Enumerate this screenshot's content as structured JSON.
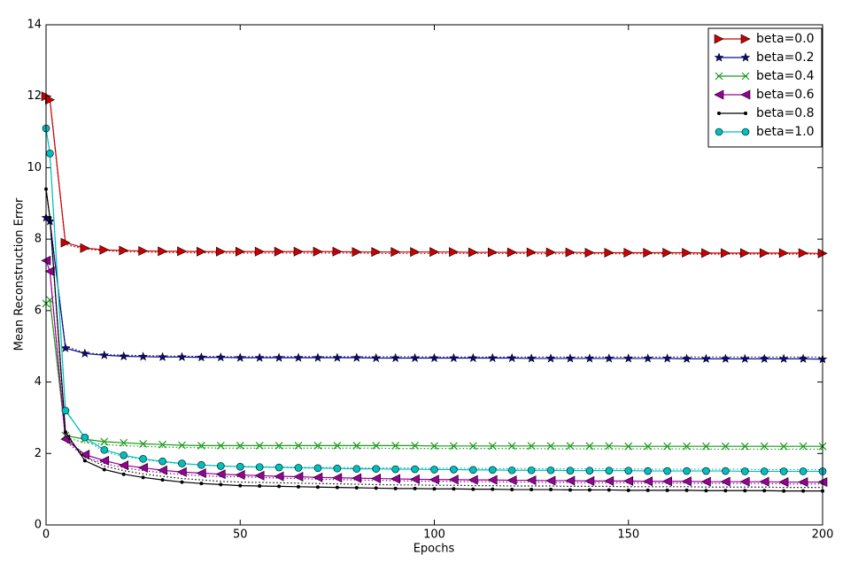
{
  "chart_data": {
    "type": "line",
    "xlabel": "Epochs",
    "ylabel": "Mean Reconstruction Error",
    "x": [
      0,
      1,
      5,
      10,
      15,
      20,
      25,
      30,
      35,
      40,
      45,
      50,
      55,
      60,
      65,
      70,
      75,
      80,
      85,
      90,
      95,
      100,
      105,
      110,
      115,
      120,
      125,
      130,
      135,
      140,
      145,
      150,
      155,
      160,
      165,
      170,
      175,
      180,
      185,
      190,
      195,
      200
    ],
    "xlim": [
      0,
      200
    ],
    "xticks": [
      0,
      50,
      100,
      150,
      200
    ],
    "ylim": [
      0,
      14
    ],
    "yticks": [
      0,
      2,
      4,
      6,
      8,
      10,
      12,
      14
    ],
    "legend": "upper right",
    "series": [
      {
        "name": "beta=0.0",
        "color": "#cc0000",
        "marker": "triangle-right",
        "values": [
          12.0,
          11.9,
          7.9,
          7.75,
          7.7,
          7.68,
          7.67,
          7.66,
          7.66,
          7.65,
          7.65,
          7.65,
          7.65,
          7.65,
          7.65,
          7.65,
          7.65,
          7.64,
          7.64,
          7.64,
          7.64,
          7.64,
          7.64,
          7.63,
          7.63,
          7.63,
          7.63,
          7.63,
          7.63,
          7.62,
          7.62,
          7.62,
          7.62,
          7.62,
          7.62,
          7.61,
          7.61,
          7.61,
          7.61,
          7.61,
          7.61,
          7.6
        ],
        "dotted_values": [
          12.0,
          11.9,
          7.85,
          7.72,
          7.68,
          7.65,
          7.64,
          7.63,
          7.62,
          7.62,
          7.61,
          7.61,
          7.61,
          7.61,
          7.61,
          7.61,
          7.61,
          7.61,
          7.6,
          7.6,
          7.6,
          7.6,
          7.6,
          7.6,
          7.6,
          7.6,
          7.59,
          7.59,
          7.59,
          7.59,
          7.59,
          7.59,
          7.59,
          7.59,
          7.58,
          7.58,
          7.58,
          7.58,
          7.58,
          7.58,
          7.58,
          7.57
        ]
      },
      {
        "name": "beta=0.2",
        "color": "#0a0a8c",
        "marker": "star",
        "values": [
          8.6,
          8.5,
          4.95,
          4.8,
          4.75,
          4.72,
          4.71,
          4.7,
          4.7,
          4.69,
          4.69,
          4.68,
          4.68,
          4.68,
          4.68,
          4.68,
          4.68,
          4.68,
          4.67,
          4.67,
          4.67,
          4.67,
          4.67,
          4.67,
          4.67,
          4.67,
          4.66,
          4.66,
          4.66,
          4.66,
          4.66,
          4.66,
          4.66,
          4.66,
          4.65,
          4.65,
          4.65,
          4.65,
          4.65,
          4.65,
          4.65,
          4.64
        ],
        "dotted_values": [
          8.6,
          8.5,
          5.0,
          4.82,
          4.77,
          4.75,
          4.74,
          4.73,
          4.72,
          4.72,
          4.71,
          4.71,
          4.71,
          4.71,
          4.71,
          4.71,
          4.71,
          4.71,
          4.71,
          4.71,
          4.71,
          4.7,
          4.7,
          4.7,
          4.7,
          4.7,
          4.7,
          4.7,
          4.7,
          4.7,
          4.7,
          4.7,
          4.7,
          4.7,
          4.7,
          4.7,
          4.7,
          4.7,
          4.7,
          4.7,
          4.7,
          4.7
        ]
      },
      {
        "name": "beta=0.4",
        "color": "#1f9a1f",
        "marker": "x",
        "values": [
          6.2,
          6.3,
          2.5,
          2.4,
          2.33,
          2.3,
          2.27,
          2.25,
          2.23,
          2.22,
          2.22,
          2.22,
          2.22,
          2.22,
          2.22,
          2.22,
          2.22,
          2.22,
          2.22,
          2.22,
          2.22,
          2.21,
          2.21,
          2.21,
          2.21,
          2.21,
          2.21,
          2.21,
          2.21,
          2.21,
          2.21,
          2.2,
          2.2,
          2.2,
          2.2,
          2.2,
          2.2,
          2.2,
          2.2,
          2.2,
          2.2,
          2.2
        ],
        "dotted_values": [
          6.2,
          6.3,
          2.45,
          2.3,
          2.25,
          2.22,
          2.2,
          2.18,
          2.17,
          2.16,
          2.15,
          2.15,
          2.15,
          2.15,
          2.15,
          2.15,
          2.15,
          2.15,
          2.15,
          2.14,
          2.14,
          2.14,
          2.14,
          2.14,
          2.14,
          2.14,
          2.14,
          2.13,
          2.13,
          2.13,
          2.13,
          2.13,
          2.13,
          2.13,
          2.13,
          2.12,
          2.12,
          2.12,
          2.12,
          2.12,
          2.12,
          2.12
        ]
      },
      {
        "name": "beta=0.6",
        "color": "#990099",
        "marker": "triangle-left",
        "values": [
          7.4,
          7.1,
          2.4,
          1.97,
          1.8,
          1.67,
          1.6,
          1.53,
          1.48,
          1.45,
          1.42,
          1.4,
          1.38,
          1.36,
          1.35,
          1.33,
          1.32,
          1.31,
          1.3,
          1.29,
          1.28,
          1.27,
          1.27,
          1.26,
          1.26,
          1.25,
          1.25,
          1.24,
          1.24,
          1.23,
          1.23,
          1.23,
          1.22,
          1.22,
          1.22,
          1.21,
          1.21,
          1.21,
          1.21,
          1.2,
          1.2,
          1.2
        ],
        "dotted_values": [
          7.4,
          7.1,
          2.35,
          1.9,
          1.72,
          1.6,
          1.52,
          1.46,
          1.41,
          1.38,
          1.35,
          1.35,
          1.33,
          1.31,
          1.3,
          1.28,
          1.27,
          1.26,
          1.25,
          1.24,
          1.23,
          1.22,
          1.22,
          1.21,
          1.21,
          1.2,
          1.2,
          1.19,
          1.19,
          1.18,
          1.18,
          1.18,
          1.17,
          1.17,
          1.17,
          1.16,
          1.16,
          1.16,
          1.16,
          1.15,
          1.15,
          1.15
        ]
      },
      {
        "name": "beta=0.8",
        "color": "#000000",
        "marker": "dot",
        "values": [
          9.4,
          8.6,
          2.6,
          1.8,
          1.55,
          1.42,
          1.33,
          1.26,
          1.2,
          1.16,
          1.13,
          1.1,
          1.09,
          1.08,
          1.07,
          1.06,
          1.05,
          1.04,
          1.03,
          1.02,
          1.02,
          1.01,
          1.01,
          1.0,
          1.0,
          0.99,
          0.99,
          0.99,
          0.98,
          0.98,
          0.98,
          0.97,
          0.97,
          0.97,
          0.97,
          0.96,
          0.96,
          0.96,
          0.96,
          0.95,
          0.95,
          0.95
        ],
        "dotted_values": [
          9.4,
          8.6,
          2.5,
          1.9,
          1.65,
          1.52,
          1.43,
          1.36,
          1.3,
          1.26,
          1.22,
          1.2,
          1.19,
          1.18,
          1.17,
          1.16,
          1.15,
          1.14,
          1.13,
          1.12,
          1.12,
          1.11,
          1.11,
          1.1,
          1.1,
          1.09,
          1.09,
          1.09,
          1.08,
          1.08,
          1.08,
          1.07,
          1.07,
          1.07,
          1.07,
          1.06,
          1.06,
          1.06,
          1.06,
          1.05,
          1.05,
          1.05
        ]
      },
      {
        "name": "beta=1.0",
        "color": "#00bfbf",
        "marker": "circle",
        "values": [
          11.1,
          10.4,
          3.2,
          2.45,
          2.1,
          1.95,
          1.85,
          1.78,
          1.72,
          1.68,
          1.65,
          1.63,
          1.62,
          1.61,
          1.6,
          1.59,
          1.58,
          1.57,
          1.57,
          1.56,
          1.56,
          1.55,
          1.55,
          1.54,
          1.54,
          1.53,
          1.53,
          1.53,
          1.52,
          1.52,
          1.52,
          1.52,
          1.51,
          1.51,
          1.51,
          1.51,
          1.51,
          1.5,
          1.5,
          1.5,
          1.5,
          1.5
        ],
        "dotted_values": [
          11.1,
          10.4,
          3.25,
          2.4,
          2.05,
          1.92,
          1.83,
          1.76,
          1.71,
          1.68,
          1.65,
          1.64,
          1.63,
          1.62,
          1.62,
          1.61,
          1.61,
          1.6,
          1.6,
          1.6,
          1.59,
          1.59,
          1.59,
          1.58,
          1.58,
          1.58,
          1.58,
          1.57,
          1.57,
          1.57,
          1.57,
          1.57,
          1.56,
          1.56,
          1.56,
          1.56,
          1.56,
          1.56,
          1.55,
          1.55,
          1.55,
          1.55
        ]
      }
    ]
  }
}
